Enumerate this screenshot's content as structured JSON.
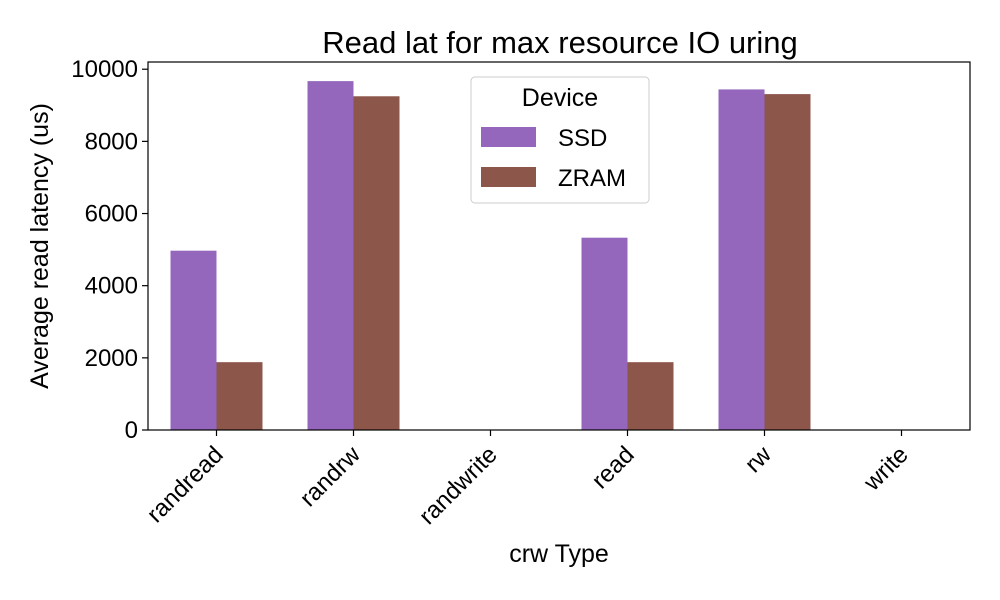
{
  "chart_data": {
    "type": "bar",
    "title": "Read lat for max resource IO uring",
    "xlabel": "crw Type",
    "ylabel": "Average read latency (us)",
    "categories": [
      "randread",
      "randrw",
      "randwrite",
      "read",
      "rw",
      "write"
    ],
    "series": [
      {
        "name": "SSD",
        "color": "#9467bd",
        "values": [
          4970,
          9670,
          0,
          5330,
          9440,
          0
        ]
      },
      {
        "name": "ZRAM",
        "color": "#8c564b",
        "values": [
          1880,
          9250,
          0,
          1880,
          9310,
          0
        ]
      }
    ],
    "ylim": [
      0,
      10200
    ],
    "yticks": [
      0,
      2000,
      4000,
      6000,
      8000,
      10000
    ],
    "ytick_labels": [
      "0",
      "2000",
      "4000",
      "6000",
      "8000",
      "10000"
    ],
    "legend": {
      "title": "Device",
      "placement": "top-center"
    },
    "grid": false
  }
}
